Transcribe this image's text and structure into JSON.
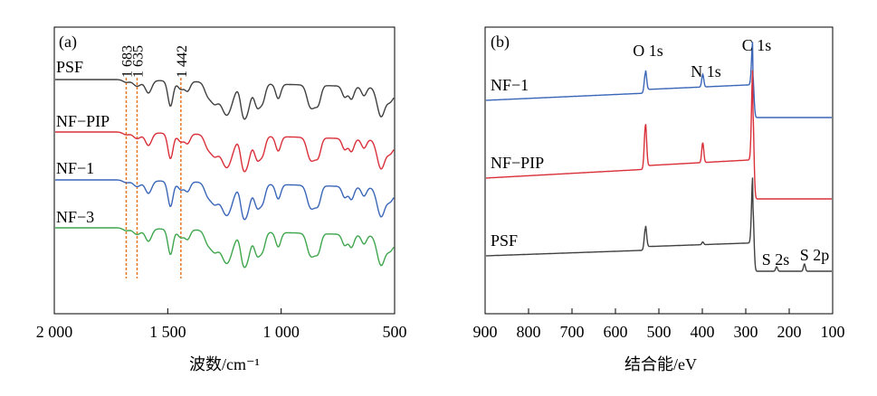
{
  "colors": {
    "PSF": "#404040",
    "NF-PIP": "#d9303a",
    "NF-1": "#3a66b8",
    "NF-3": "#3fa64e",
    "marker": "#e87722",
    "axis": "#000000"
  },
  "chart_data": [
    {
      "type": "line",
      "panel_label": "(a)",
      "xlabel": "波数/cm⁻¹",
      "ylabel": "",
      "xlim": [
        2000,
        500
      ],
      "x_reversed": true,
      "xticks": [
        2000,
        1500,
        1000,
        500
      ],
      "xtick_labels": [
        "2 000",
        "1 500",
        "1 000",
        "500"
      ],
      "yticks_shown": false,
      "grid": false,
      "series": [
        {
          "name": "PSF",
          "color_key": "PSF"
        },
        {
          "name": "NF−PIP",
          "color_key": "NF-PIP"
        },
        {
          "name": "NF−1",
          "color_key": "NF-1"
        },
        {
          "name": "NF−3",
          "color_key": "NF-3"
        }
      ],
      "markers": [
        {
          "x": 1683,
          "label": "1 683"
        },
        {
          "x": 1635,
          "label": "1 635"
        },
        {
          "x": 1442,
          "label": "1 442"
        }
      ],
      "absorption_bands_cm-1": [
        1683,
        1635,
        1585,
        1488,
        1442,
        1412,
        1325,
        1295,
        1240,
        1170,
        1150,
        1105,
        1080,
        1013,
        873,
        853,
        835,
        720,
        690,
        635,
        560,
        520
      ]
    },
    {
      "type": "line",
      "panel_label": "(b)",
      "xlabel": "结合能/eV",
      "ylabel": "",
      "xlim": [
        900,
        100
      ],
      "x_reversed": true,
      "xticks": [
        900,
        800,
        700,
        600,
        500,
        400,
        300,
        200,
        100
      ],
      "xtick_labels": [
        "900",
        "800",
        "700",
        "600",
        "500",
        "400",
        "300",
        "200",
        "100"
      ],
      "yticks_shown": false,
      "grid": false,
      "series": [
        {
          "name": "NF−1",
          "color_key": "NF-1",
          "peaks_eV": [
            531,
            399,
            284
          ]
        },
        {
          "name": "NF−PIP",
          "color_key": "NF-PIP",
          "peaks_eV": [
            531,
            399,
            284
          ]
        },
        {
          "name": "PSF",
          "color_key": "PSF",
          "peaks_eV": [
            531,
            399,
            284,
            229,
            165
          ]
        }
      ],
      "peak_labels": [
        {
          "x": 531,
          "label": "O 1s"
        },
        {
          "x": 399,
          "label": "N 1s"
        },
        {
          "x": 284,
          "label": "C 1s"
        },
        {
          "x": 229,
          "label": "S 2s"
        },
        {
          "x": 165,
          "label": "S 2p"
        }
      ]
    }
  ]
}
